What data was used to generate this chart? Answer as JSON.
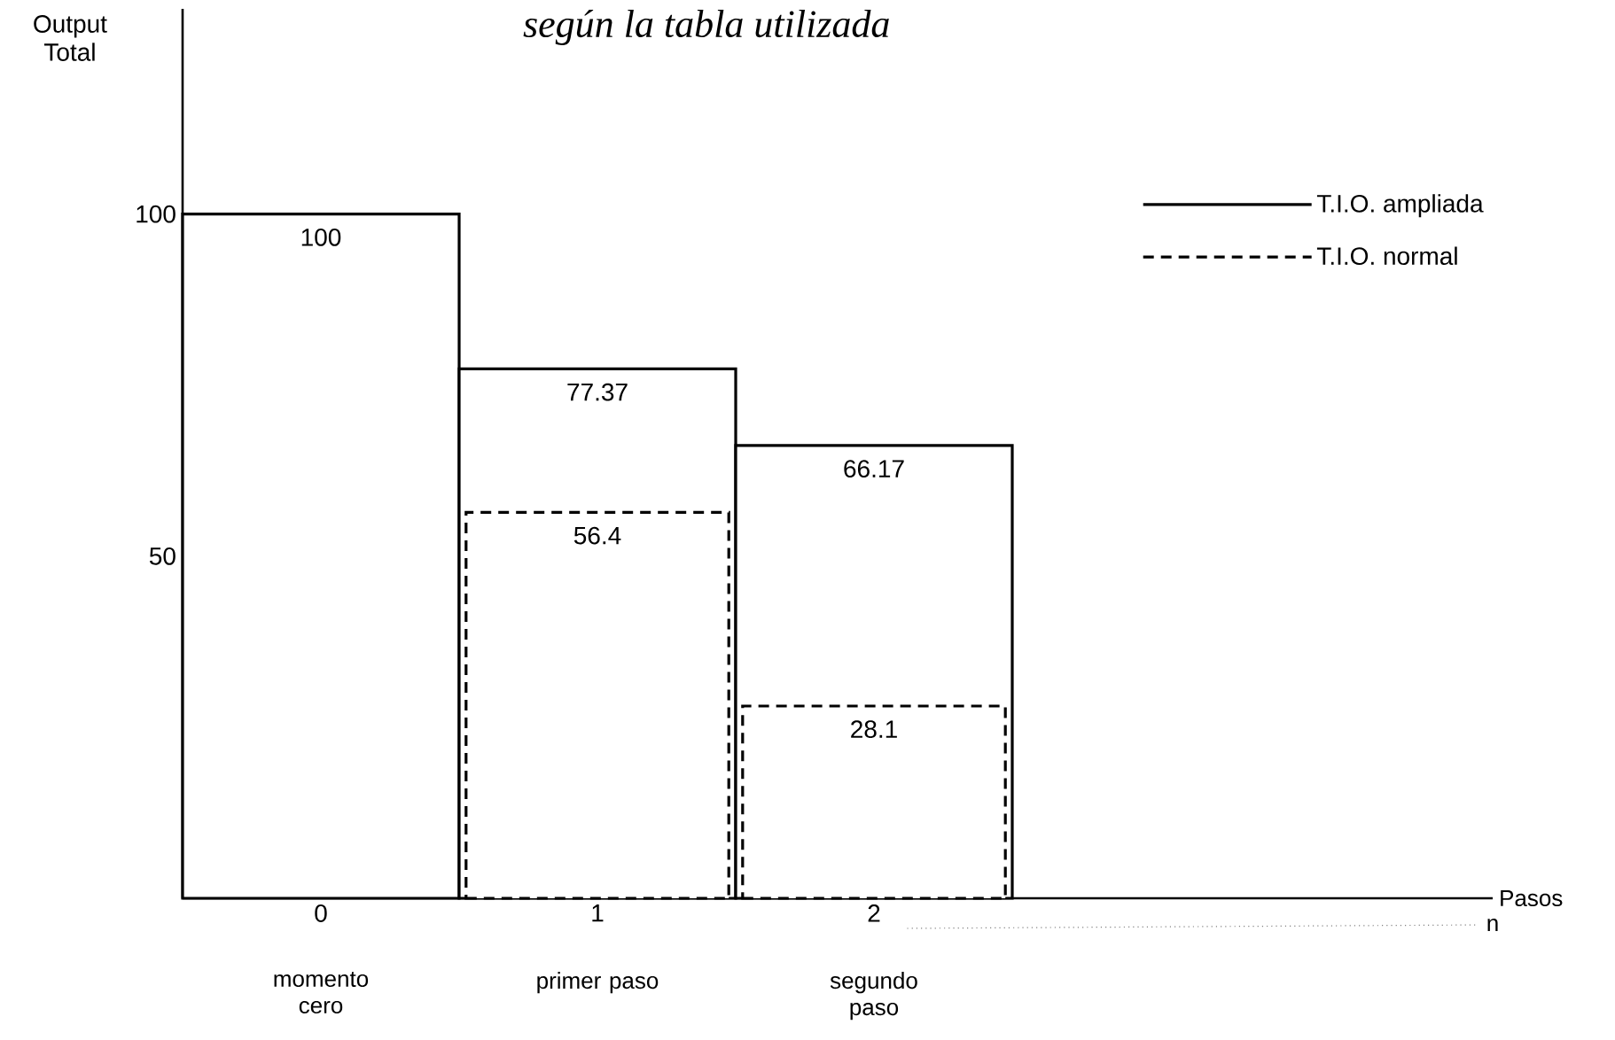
{
  "chart_data": {
    "type": "bar",
    "title": "según la tabla utilizada",
    "ylabel": "Output Total",
    "categories": [
      "0",
      "1",
      "2"
    ],
    "series": [
      {
        "name": "T.I.O. ampliada",
        "color": "#000000",
        "line_style": "solid",
        "values": [
          100,
          77.37,
          66.17
        ]
      },
      {
        "name": "T.I.O. normal",
        "color": "#000000",
        "line_style": "dashed",
        "values": [
          null,
          56.4,
          28.1
        ]
      }
    ],
    "ylim": [
      0,
      130
    ],
    "yticks": [
      50,
      100
    ],
    "data_labels": true,
    "legend": "top right",
    "grid": false,
    "annotations": [
      "momento cero",
      "primer paso",
      "segundo paso",
      "n",
      "Pasos"
    ]
  }
}
